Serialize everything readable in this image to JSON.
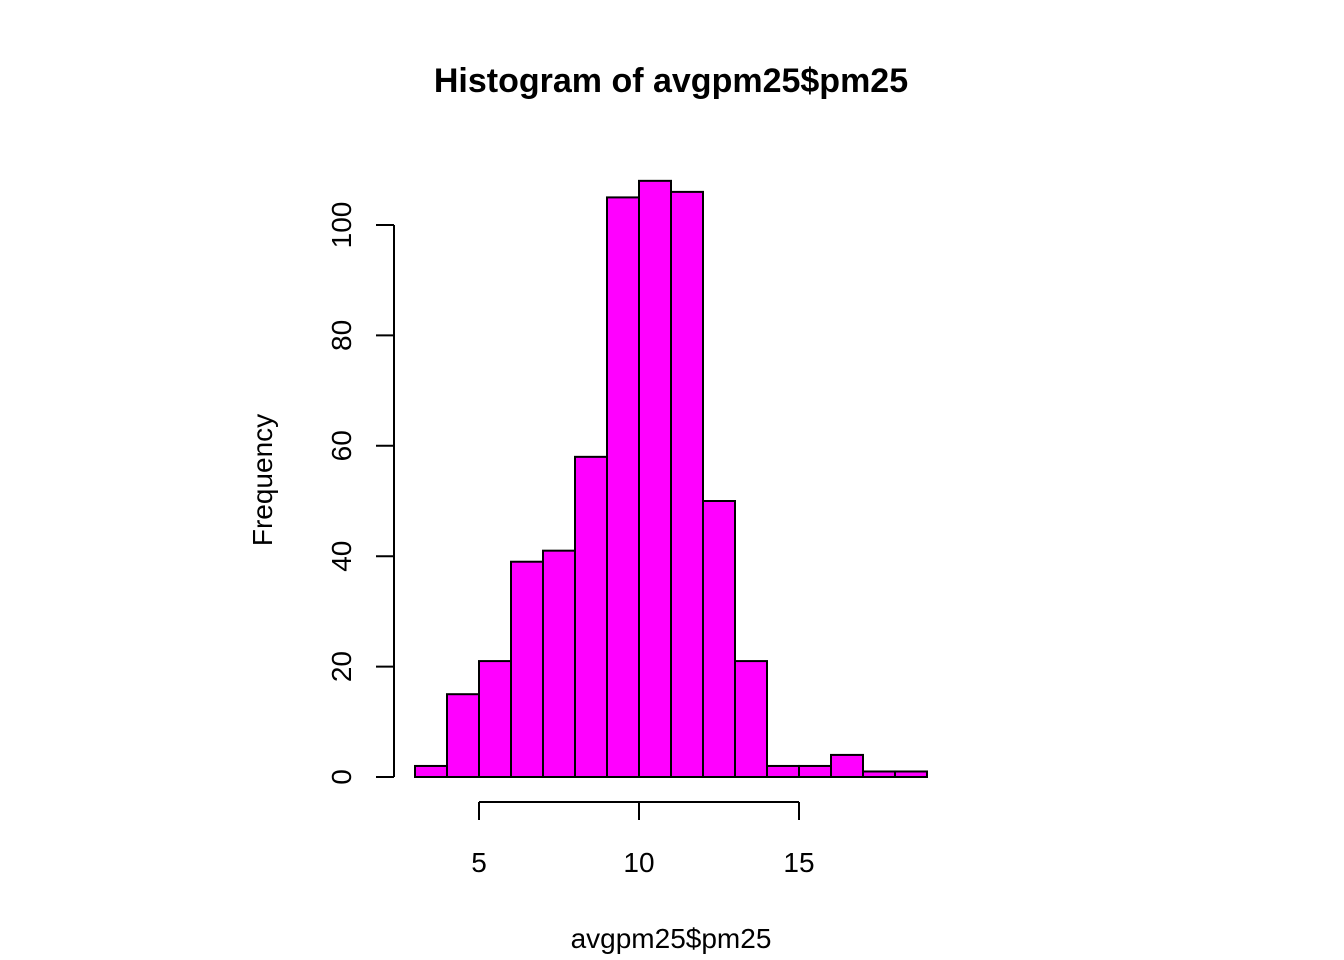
{
  "chart_data": {
    "type": "bar",
    "title": "Histogram of avgpm25$pm25",
    "xlabel": "avgpm25$pm25",
    "ylabel": "Frequency",
    "bar_color": "#ff00ff",
    "border_color": "#000000",
    "bins": [
      {
        "x0": 3,
        "x1": 4,
        "count": 2
      },
      {
        "x0": 4,
        "x1": 5,
        "count": 15
      },
      {
        "x0": 5,
        "x1": 6,
        "count": 21
      },
      {
        "x0": 6,
        "x1": 7,
        "count": 39
      },
      {
        "x0": 7,
        "x1": 8,
        "count": 41
      },
      {
        "x0": 8,
        "x1": 9,
        "count": 58
      },
      {
        "x0": 9,
        "x1": 10,
        "count": 105
      },
      {
        "x0": 10,
        "x1": 11,
        "count": 108
      },
      {
        "x0": 11,
        "x1": 12,
        "count": 106
      },
      {
        "x0": 12,
        "x1": 13,
        "count": 50
      },
      {
        "x0": 13,
        "x1": 14,
        "count": 21
      },
      {
        "x0": 14,
        "x1": 15,
        "count": 2
      },
      {
        "x0": 15,
        "x1": 16,
        "count": 2
      },
      {
        "x0": 16,
        "x1": 17,
        "count": 4
      },
      {
        "x0": 17,
        "x1": 18,
        "count": 1
      },
      {
        "x0": 18,
        "x1": 19,
        "count": 1
      }
    ],
    "x_ticks": [
      5,
      10,
      15
    ],
    "x_tick_labels": [
      "5",
      "10",
      "15"
    ],
    "y_ticks": [
      0,
      20,
      40,
      60,
      80,
      100
    ],
    "y_tick_labels": [
      "0",
      "20",
      "40",
      "60",
      "80",
      "100"
    ],
    "xlim": [
      3,
      19
    ],
    "ylim": [
      0,
      108
    ],
    "grid": false
  }
}
